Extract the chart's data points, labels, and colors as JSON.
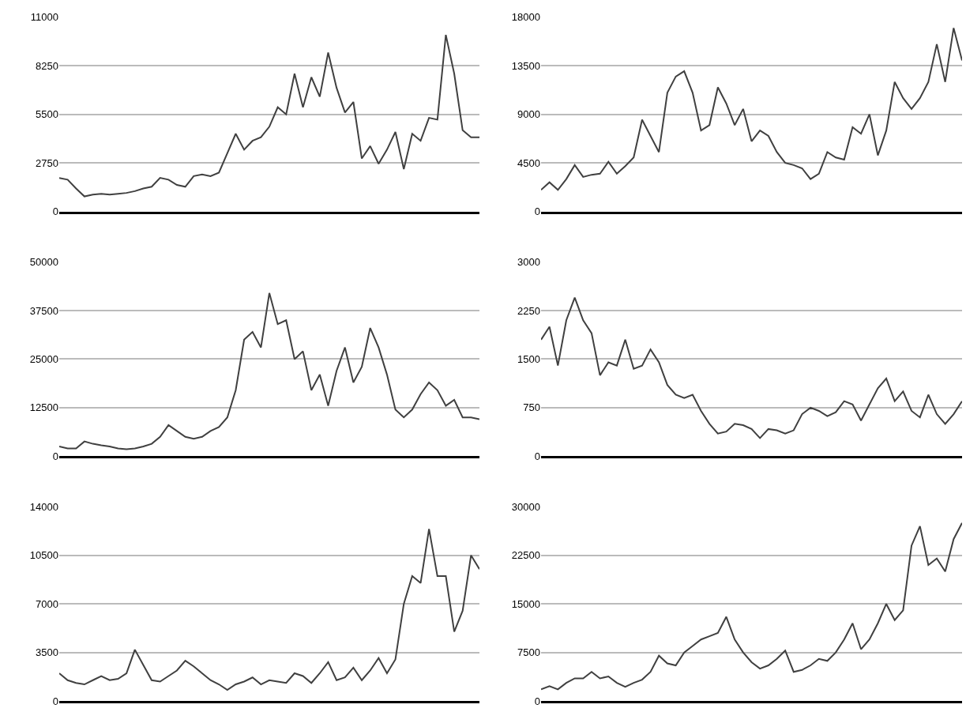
{
  "chart_data": [
    {
      "type": "line",
      "categories": [
        null,
        null,
        null,
        null,
        null,
        null,
        null,
        null,
        null,
        null,
        null,
        null,
        null,
        null,
        null,
        null,
        null,
        null,
        null,
        null,
        null,
        null,
        null,
        null,
        null,
        null,
        null,
        null,
        null,
        null,
        null,
        null,
        null,
        null,
        null,
        null,
        null,
        null,
        null,
        null,
        null,
        null,
        null,
        null,
        null,
        null,
        null,
        null,
        null,
        null,
        null
      ],
      "color": "#404040",
      "ylim": [
        0,
        11000
      ],
      "yticks": [
        0,
        2750,
        5500,
        8250,
        11000
      ],
      "grid": "y",
      "tick_labels": "y",
      "values": [
        1900,
        1800,
        1300,
        850,
        950,
        1000,
        950,
        1000,
        1050,
        1150,
        1300,
        1400,
        1900,
        1800,
        1500,
        1400,
        2000,
        2100,
        2000,
        2200,
        3300,
        4400,
        3500,
        4000,
        4200,
        4800,
        5900,
        5500,
        7800,
        5900,
        7600,
        6500,
        9000,
        7000,
        5600,
        6200,
        3000,
        3700,
        2700,
        3500,
        4500,
        2400,
        4400,
        4000,
        5300,
        5200,
        10000,
        7800,
        4600,
        4200,
        4200
      ]
    },
    {
      "type": "line",
      "categories": [
        null,
        null,
        null,
        null,
        null,
        null,
        null,
        null,
        null,
        null,
        null,
        null,
        null,
        null,
        null,
        null,
        null,
        null,
        null,
        null,
        null,
        null,
        null,
        null,
        null,
        null,
        null,
        null,
        null,
        null,
        null,
        null,
        null,
        null,
        null,
        null,
        null,
        null,
        null,
        null,
        null,
        null,
        null,
        null,
        null,
        null,
        null,
        null,
        null,
        null,
        null
      ],
      "color": "#404040",
      "ylim": [
        0,
        18000
      ],
      "yticks": [
        0,
        4500,
        9000,
        13500,
        18000
      ],
      "grid": "y",
      "tick_labels": "y",
      "values": [
        2000,
        2700,
        2000,
        3000,
        4300,
        3200,
        3400,
        3500,
        4600,
        3500,
        4200,
        5000,
        8500,
        7000,
        5500,
        11000,
        12500,
        13000,
        11000,
        7500,
        8000,
        11500,
        10000,
        8000,
        9500,
        6500,
        7500,
        7000,
        5500,
        4500,
        4300,
        4000,
        3000,
        3500,
        5500,
        5000,
        4800,
        7800,
        7200,
        9000,
        5200,
        7500,
        12000,
        10500,
        9500,
        10500,
        12000,
        15500,
        12000,
        17000,
        14000
      ]
    },
    {
      "type": "line",
      "categories": [
        null,
        null,
        null,
        null,
        null,
        null,
        null,
        null,
        null,
        null,
        null,
        null,
        null,
        null,
        null,
        null,
        null,
        null,
        null,
        null,
        null,
        null,
        null,
        null,
        null,
        null,
        null,
        null,
        null,
        null,
        null,
        null,
        null,
        null,
        null,
        null,
        null,
        null,
        null,
        null,
        null,
        null,
        null,
        null,
        null,
        null,
        null,
        null,
        null,
        null,
        null
      ],
      "color": "#404040",
      "ylim": [
        0,
        50000
      ],
      "yticks": [
        0,
        12500,
        25000,
        37500,
        50000
      ],
      "grid": "y",
      "tick_labels": "y",
      "values": [
        2500,
        2000,
        2000,
        3800,
        3200,
        2800,
        2500,
        2000,
        1800,
        2000,
        2500,
        3200,
        5000,
        8000,
        6500,
        5000,
        4500,
        5000,
        6500,
        7500,
        10000,
        17000,
        30000,
        32000,
        28000,
        42000,
        34000,
        35000,
        25000,
        27000,
        17000,
        21000,
        13000,
        22000,
        28000,
        19000,
        23000,
        33000,
        28000,
        21000,
        12000,
        10000,
        12000,
        16000,
        19000,
        17000,
        13000,
        14500,
        10000,
        10000,
        9500
      ]
    },
    {
      "type": "line",
      "categories": [
        null,
        null,
        null,
        null,
        null,
        null,
        null,
        null,
        null,
        null,
        null,
        null,
        null,
        null,
        null,
        null,
        null,
        null,
        null,
        null,
        null,
        null,
        null,
        null,
        null,
        null,
        null,
        null,
        null,
        null,
        null,
        null,
        null,
        null,
        null,
        null,
        null,
        null,
        null,
        null,
        null,
        null,
        null,
        null,
        null,
        null,
        null,
        null,
        null,
        null,
        null
      ],
      "color": "#404040",
      "ylim": [
        0,
        3000
      ],
      "yticks": [
        0,
        750,
        1500,
        2250,
        3000
      ],
      "grid": "y",
      "tick_labels": "y",
      "values": [
        1800,
        2000,
        1400,
        2100,
        2450,
        2100,
        1900,
        1250,
        1450,
        1400,
        1800,
        1350,
        1400,
        1650,
        1450,
        1100,
        950,
        900,
        950,
        700,
        500,
        350,
        380,
        500,
        480,
        420,
        280,
        420,
        400,
        350,
        400,
        650,
        750,
        700,
        620,
        680,
        850,
        800,
        550,
        800,
        1050,
        1200,
        850,
        1000,
        700,
        600,
        950,
        650,
        500,
        650,
        850
      ]
    },
    {
      "type": "line",
      "categories": [
        null,
        null,
        null,
        null,
        null,
        null,
        null,
        null,
        null,
        null,
        null,
        null,
        null,
        null,
        null,
        null,
        null,
        null,
        null,
        null,
        null,
        null,
        null,
        null,
        null,
        null,
        null,
        null,
        null,
        null,
        null,
        null,
        null,
        null,
        null,
        null,
        null,
        null,
        null,
        null,
        null,
        null,
        null,
        null,
        null,
        null,
        null,
        null,
        null,
        null,
        null
      ],
      "color": "#404040",
      "ylim": [
        0,
        14000
      ],
      "yticks": [
        0,
        3500,
        7000,
        10500,
        14000
      ],
      "grid": "y",
      "tick_labels": "y",
      "values": [
        2000,
        1500,
        1300,
        1200,
        1500,
        1800,
        1500,
        1600,
        2000,
        3700,
        2600,
        1500,
        1400,
        1800,
        2200,
        2900,
        2500,
        2000,
        1500,
        1200,
        800,
        1200,
        1400,
        1700,
        1200,
        1500,
        1400,
        1300,
        2000,
        1800,
        1300,
        2000,
        2800,
        1500,
        1700,
        2400,
        1500,
        2200,
        3100,
        2000,
        3000,
        7000,
        9000,
        8500,
        12400,
        9000,
        9000,
        5000,
        6500,
        10500,
        9500
      ]
    },
    {
      "type": "line",
      "categories": [
        null,
        null,
        null,
        null,
        null,
        null,
        null,
        null,
        null,
        null,
        null,
        null,
        null,
        null,
        null,
        null,
        null,
        null,
        null,
        null,
        null,
        null,
        null,
        null,
        null,
        null,
        null,
        null,
        null,
        null,
        null,
        null,
        null,
        null,
        null,
        null,
        null,
        null,
        null,
        null,
        null,
        null,
        null,
        null,
        null,
        null,
        null,
        null,
        null,
        null,
        null
      ],
      "color": "#404040",
      "ylim": [
        0,
        30000
      ],
      "yticks": [
        0,
        7500,
        15000,
        22500,
        30000
      ],
      "grid": "y",
      "tick_labels": "y",
      "values": [
        1800,
        2300,
        1800,
        2800,
        3500,
        3500,
        4500,
        3500,
        3800,
        2800,
        2200,
        2800,
        3300,
        4500,
        7000,
        5800,
        5500,
        7500,
        8500,
        9500,
        10000,
        10500,
        13000,
        9500,
        7500,
        6000,
        5000,
        5500,
        6500,
        7800,
        4500,
        4800,
        5500,
        6500,
        6200,
        7500,
        9500,
        12000,
        8000,
        9500,
        12000,
        15000,
        12500,
        14000,
        24000,
        27000,
        21000,
        22000,
        20000,
        25000,
        27500
      ]
    }
  ]
}
